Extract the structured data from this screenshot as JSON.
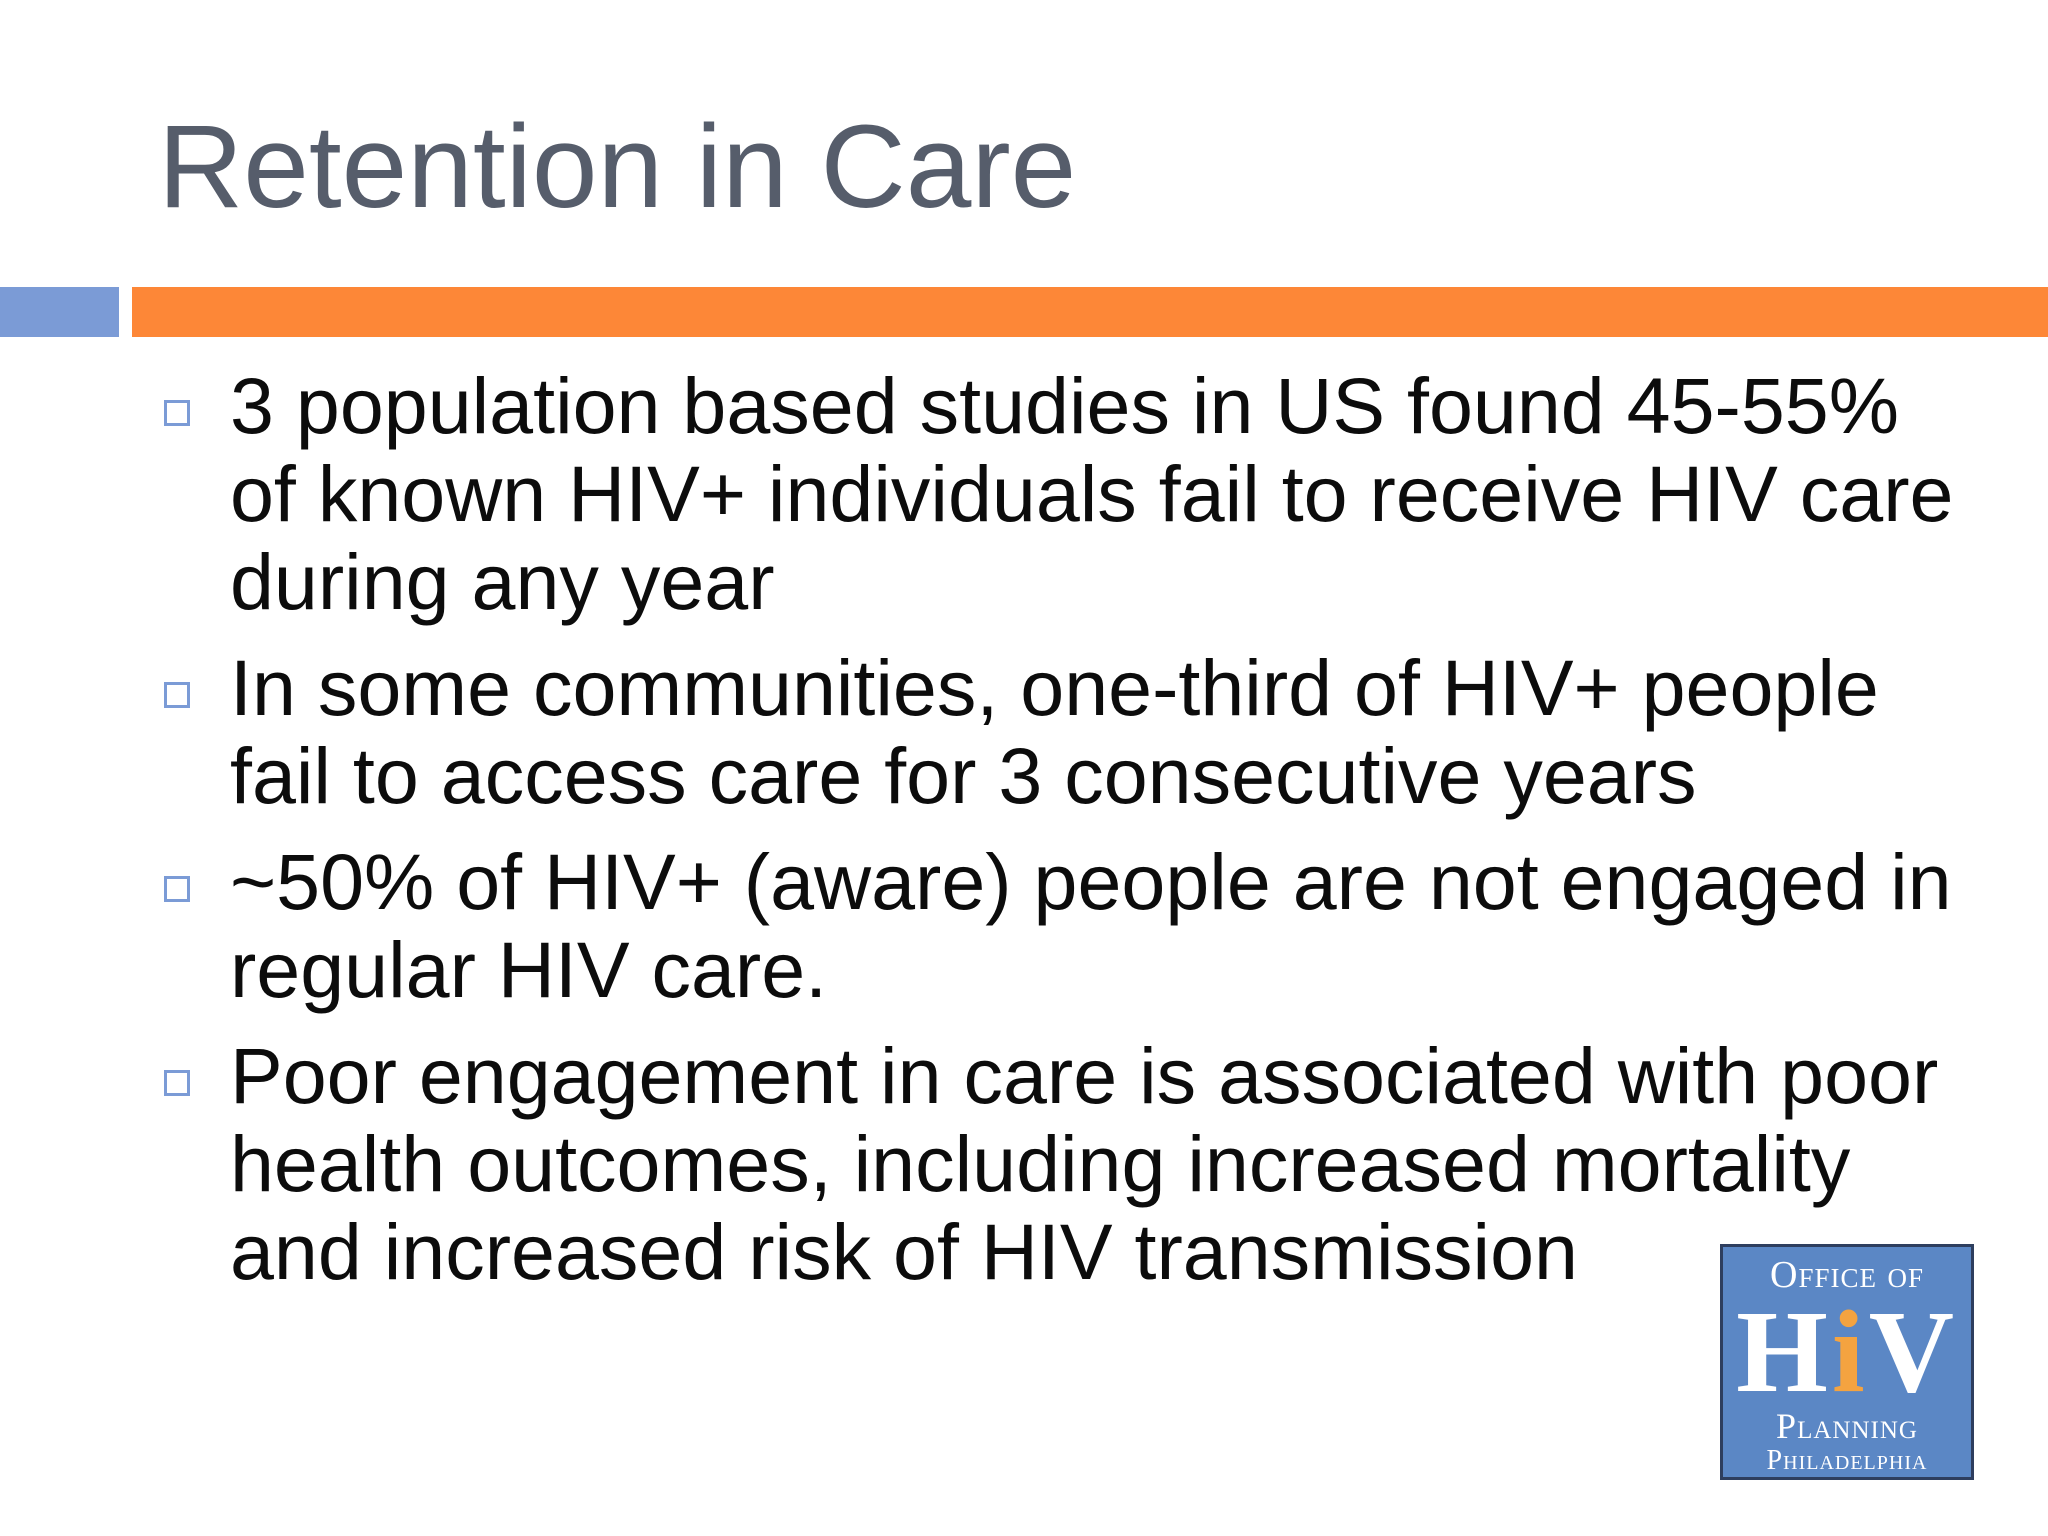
{
  "slide": {
    "title": "Retention in Care",
    "bullets": [
      "3 population based studies in US found 45-55% of known HIV+ individuals fail to receive HIV care during any year",
      "In some communities, one-third of HIV+ people fail to access care for 3 consecutive years",
      "~50% of HIV+ (aware) people are not engaged in regular HIV care.",
      "Poor engagement in care is associated with poor health outcomes, including increased mortality and increased risk of HIV transmission"
    ]
  },
  "logo": {
    "line1": "Office of",
    "hiv_h": "H",
    "hiv_i": "i",
    "hiv_v": "V",
    "line3": "Planning",
    "line4": "Philadelphia"
  },
  "colors": {
    "title": "#565d6b",
    "accent_blue": "#7b9bd6",
    "accent_orange": "#fd8737",
    "logo_background": "#5b87c5",
    "logo_i": "#f4a340"
  }
}
